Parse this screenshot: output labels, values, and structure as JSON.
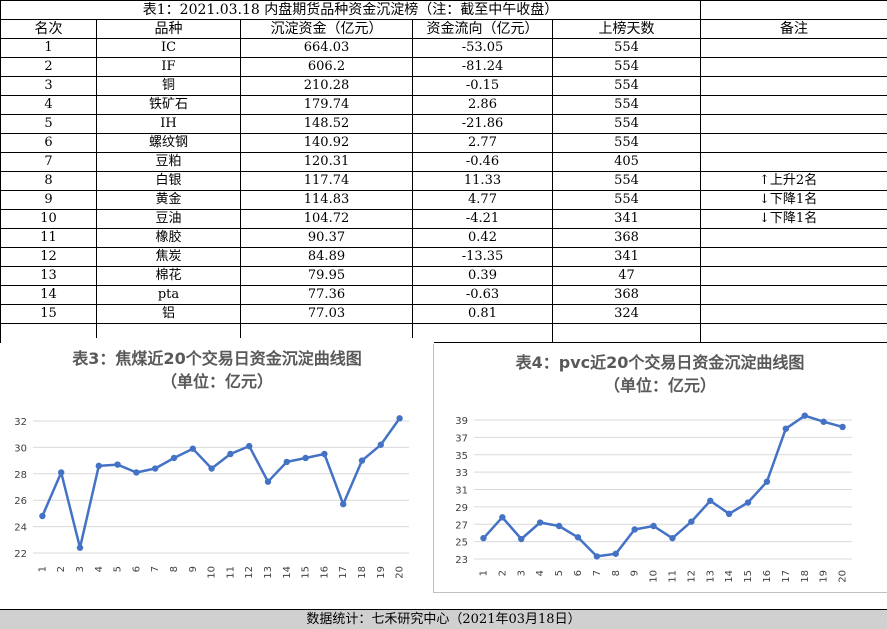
{
  "table": {
    "title": "表1：2021.03.18 内盘期货品种资金沉淀榜（注：截至中午收盘）",
    "headers": [
      "名次",
      "品种",
      "沉淀资金（亿元）",
      "资金流向（亿元）",
      "上榜天数",
      "备注"
    ],
    "rows": [
      {
        "rank": "1",
        "name": "IC",
        "funds": "664.03",
        "flow": "-53.05",
        "days": "554",
        "note": ""
      },
      {
        "rank": "2",
        "name": "IF",
        "funds": "606.2",
        "flow": "-81.24",
        "days": "554",
        "note": ""
      },
      {
        "rank": "3",
        "name": "铜",
        "funds": "210.28",
        "flow": "-0.15",
        "days": "554",
        "note": ""
      },
      {
        "rank": "4",
        "name": "铁矿石",
        "funds": "179.74",
        "flow": "2.86",
        "days": "554",
        "note": ""
      },
      {
        "rank": "5",
        "name": "IH",
        "funds": "148.52",
        "flow": "-21.86",
        "days": "554",
        "note": ""
      },
      {
        "rank": "6",
        "name": "螺纹钢",
        "funds": "140.92",
        "flow": "2.77",
        "days": "554",
        "note": ""
      },
      {
        "rank": "7",
        "name": "豆粕",
        "funds": "120.31",
        "flow": "-0.46",
        "days": "405",
        "note": ""
      },
      {
        "rank": "8",
        "name": "白银",
        "funds": "117.74",
        "flow": "11.33",
        "days": "554",
        "note": "↑上升2名"
      },
      {
        "rank": "9",
        "name": "黄金",
        "funds": "114.83",
        "flow": "4.77",
        "days": "554",
        "note": "↓下降1名"
      },
      {
        "rank": "10",
        "name": "豆油",
        "funds": "104.72",
        "flow": "-4.21",
        "days": "341",
        "note": "↓下降1名"
      },
      {
        "rank": "11",
        "name": "橡胶",
        "funds": "90.37",
        "flow": "0.42",
        "days": "368",
        "note": ""
      },
      {
        "rank": "12",
        "name": "焦炭",
        "funds": "84.89",
        "flow": "-13.35",
        "days": "341",
        "note": ""
      },
      {
        "rank": "13",
        "name": "棉花",
        "funds": "79.95",
        "flow": "0.39",
        "days": "47",
        "note": ""
      },
      {
        "rank": "14",
        "name": "pta",
        "funds": "77.36",
        "flow": "-0.63",
        "days": "368",
        "note": ""
      },
      {
        "rank": "15",
        "name": "铝",
        "funds": "77.03",
        "flow": "0.81",
        "days": "324",
        "note": ""
      }
    ]
  },
  "footer": "数据统计：七禾研究中心（2021年03月18日）",
  "colors": {
    "line": "#4472c4",
    "grid": "#d9d9d9",
    "footer_bg": "#d0d0d0"
  },
  "chart_data": [
    {
      "type": "line",
      "title_line1": "表3：焦煤近20个交易日资金沉淀曲线图",
      "title_line2": "（单位：亿元）",
      "x": [
        1,
        2,
        3,
        4,
        5,
        6,
        7,
        8,
        9,
        10,
        11,
        12,
        13,
        14,
        15,
        16,
        17,
        18,
        19,
        20
      ],
      "values": [
        24.8,
        28.1,
        22.4,
        28.6,
        28.7,
        28.1,
        28.4,
        29.2,
        29.9,
        28.4,
        29.5,
        30.1,
        27.4,
        28.9,
        29.2,
        29.5,
        25.7,
        29.0,
        30.2,
        32.2
      ],
      "ylim": [
        22,
        32
      ],
      "yticks": [
        22,
        24,
        26,
        28,
        30,
        32
      ],
      "grid": true
    },
    {
      "type": "line",
      "title_line1": "表4：pvc近20个交易日资金沉淀曲线图",
      "title_line2": "（单位：亿元）",
      "x": [
        1,
        2,
        3,
        4,
        5,
        6,
        7,
        8,
        9,
        10,
        11,
        12,
        13,
        14,
        15,
        16,
        17,
        18,
        19,
        20
      ],
      "values": [
        25.4,
        27.8,
        25.3,
        27.2,
        26.8,
        25.5,
        23.3,
        23.6,
        26.4,
        26.8,
        25.4,
        27.3,
        29.7,
        28.2,
        29.5,
        31.9,
        38.0,
        39.5,
        38.8,
        38.2
      ],
      "ylim": [
        23,
        39
      ],
      "yticks": [
        23,
        25,
        27,
        29,
        31,
        33,
        35,
        37,
        39
      ],
      "grid": true
    }
  ]
}
